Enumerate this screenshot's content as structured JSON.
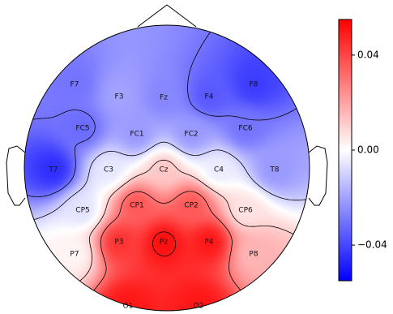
{
  "chart_data": {
    "type": "heatmap",
    "subtype": "eeg-topographic-map",
    "title": "",
    "colormap": "bwr",
    "colorbar": {
      "vmin": -0.055,
      "vmax": 0.055,
      "ticks": [
        0.04,
        0.0,
        -0.04
      ],
      "tick_labels": [
        "0.04",
        "0.00",
        "−0.04"
      ],
      "placement": "right"
    },
    "channels": [
      {
        "label": "F7",
        "value": -0.03
      },
      {
        "label": "F3",
        "value": -0.02
      },
      {
        "label": "Fz",
        "value": -0.026
      },
      {
        "label": "F4",
        "value": -0.036
      },
      {
        "label": "F8",
        "value": -0.042
      },
      {
        "label": "FC5",
        "value": -0.032
      },
      {
        "label": "FC1",
        "value": -0.022
      },
      {
        "label": "FC2",
        "value": -0.022
      },
      {
        "label": "FC6",
        "value": -0.03
      },
      {
        "label": "T7",
        "value": -0.045
      },
      {
        "label": "C3",
        "value": -0.005
      },
      {
        "label": "Cz",
        "value": 0.012
      },
      {
        "label": "C4",
        "value": -0.004
      },
      {
        "label": "T8",
        "value": -0.022
      },
      {
        "label": "CP5",
        "value": -0.006
      },
      {
        "label": "CP1",
        "value": 0.036
      },
      {
        "label": "CP2",
        "value": 0.036
      },
      {
        "label": "CP6",
        "value": 0.006
      },
      {
        "label": "P7",
        "value": 0.002
      },
      {
        "label": "P3",
        "value": 0.044
      },
      {
        "label": "Pz",
        "value": 0.052
      },
      {
        "label": "P4",
        "value": 0.05
      },
      {
        "label": "P8",
        "value": 0.016
      },
      {
        "label": "O1",
        "value": 0.05
      },
      {
        "label": "O2",
        "value": 0.05
      }
    ],
    "contour_levels": [
      -0.03,
      -0.01,
      0.01,
      0.03,
      0.05
    ],
    "negative_contour_style": "dashed",
    "positive_contour_style": "solid"
  }
}
